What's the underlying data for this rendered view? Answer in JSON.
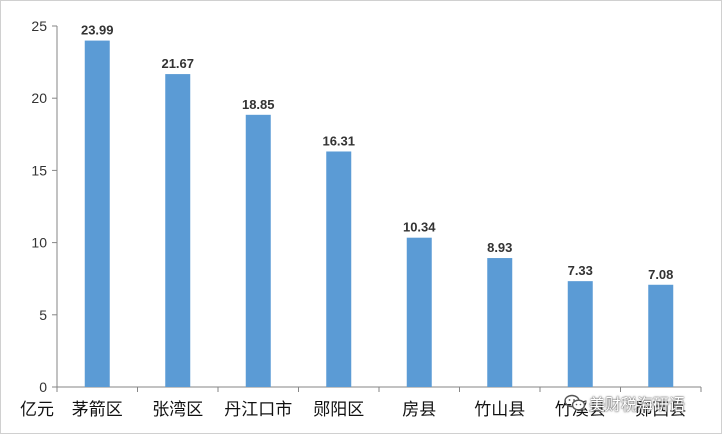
{
  "chart_data": {
    "type": "bar",
    "categories": [
      "茅箭区",
      "张湾区",
      "丹江口市",
      "郧阳区",
      "房县",
      "竹山县",
      "竹溪县",
      "郧西县"
    ],
    "values": [
      23.99,
      21.67,
      18.85,
      16.31,
      10.34,
      8.93,
      7.33,
      7.08
    ],
    "data_labels": [
      "23.99",
      "21.67",
      "18.85",
      "16.31",
      "10.34",
      "8.93",
      "7.33",
      "7.08"
    ],
    "yticks": [
      "0",
      "5",
      "10",
      "15",
      "20",
      "25"
    ],
    "ylim": [
      0,
      25
    ],
    "unit": "亿元",
    "bar_color": "#5b9bd5",
    "grid": false,
    "legend": "none"
  },
  "watermark": {
    "text": "美财税海研语",
    "icon": "wechat-icon"
  }
}
